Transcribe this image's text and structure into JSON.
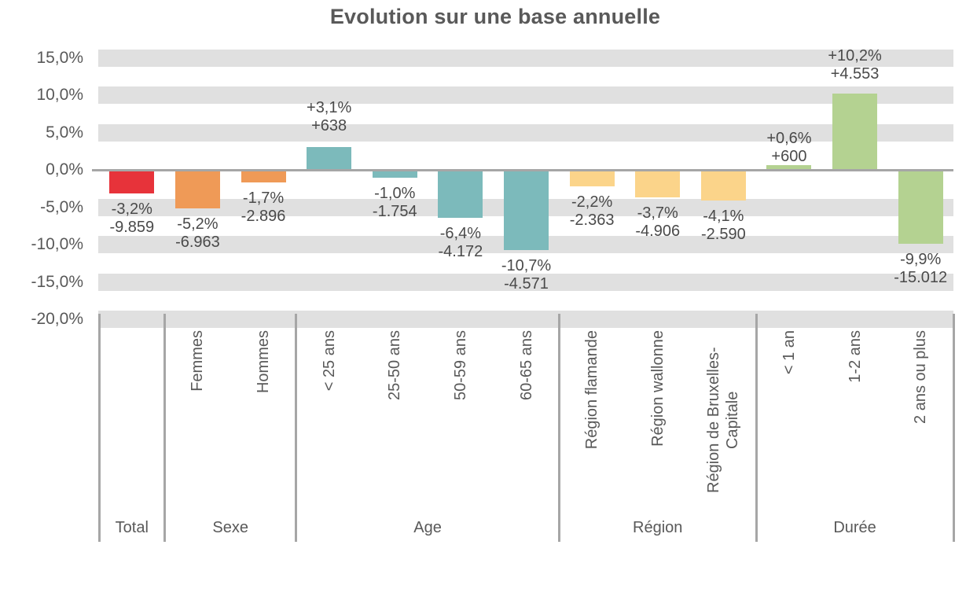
{
  "title": "Evolution sur une base annuelle",
  "colors": {
    "band": "#e0e0e0",
    "axis_line": "#a6a6a6",
    "axis_text": "#595959",
    "value_text": "#4a4a4a",
    "total": "#e7333a",
    "sexe": "#ef9a57",
    "age": "#7cbabb",
    "region": "#fbd48a",
    "duree": "#b4d291"
  },
  "y_axis": {
    "tick_labels": [
      "15,0%",
      "10,0%",
      "5,0%",
      "0,0%",
      "-5,0%",
      "-10,0%",
      "-15,0%",
      "-20,0%"
    ],
    "tick_values": [
      15,
      10,
      5,
      0,
      -5,
      -10,
      -15,
      -20
    ]
  },
  "chart_data": {
    "type": "bar",
    "title": "Evolution sur une base annuelle",
    "xlabel": "",
    "ylabel": "",
    "ylim": [
      -20,
      15
    ],
    "ytick_step": 5,
    "grid": "horizontal-bands",
    "legend": "none",
    "groups": [
      {
        "label": "Total",
        "color": "#e7333a",
        "items": [
          {
            "category": "",
            "value_pct": -3.2,
            "pct_label": "-3,2%",
            "count_label": "-9.859"
          }
        ]
      },
      {
        "label": "Sexe",
        "color": "#ef9a57",
        "items": [
          {
            "category": "Femmes",
            "value_pct": -5.2,
            "pct_label": "-5,2%",
            "count_label": "-6.963"
          },
          {
            "category": "Hommes",
            "value_pct": -1.7,
            "pct_label": "-1,7%",
            "count_label": "-2.896"
          }
        ]
      },
      {
        "label": "Age",
        "color": "#7cbabb",
        "items": [
          {
            "category": "< 25 ans",
            "value_pct": 3.1,
            "pct_label": "+3,1%",
            "count_label": "+638"
          },
          {
            "category": "25-50 ans",
            "value_pct": -1.0,
            "pct_label": "-1,0%",
            "count_label": "-1.754"
          },
          {
            "category": "50-59 ans",
            "value_pct": -6.4,
            "pct_label": "-6,4%",
            "count_label": "-4.172"
          },
          {
            "category": "60-65 ans",
            "value_pct": -10.7,
            "pct_label": "-10,7%",
            "count_label": "-4.571"
          }
        ]
      },
      {
        "label": "Région",
        "color": "#fbd48a",
        "items": [
          {
            "category": "Région flamande",
            "value_pct": -2.2,
            "pct_label": "-2,2%",
            "count_label": "-2.363"
          },
          {
            "category": "Région wallonne",
            "value_pct": -3.7,
            "pct_label": "-3,7%",
            "count_label": "-4.906"
          },
          {
            "category": "Région de Bruxelles-Capitale",
            "value_pct": -4.1,
            "pct_label": "-4,1%",
            "count_label": "-2.590"
          }
        ]
      },
      {
        "label": "Durée",
        "color": "#b4d291",
        "items": [
          {
            "category": "< 1 an",
            "value_pct": 0.6,
            "pct_label": "+0,6%",
            "count_label": "+600"
          },
          {
            "category": "1-2 ans",
            "value_pct": 10.2,
            "pct_label": "+10,2%",
            "count_label": "+4.553"
          },
          {
            "category": "2 ans ou plus",
            "value_pct": -9.9,
            "pct_label": "-9,9%",
            "count_label": "-15.012"
          }
        ]
      }
    ]
  }
}
